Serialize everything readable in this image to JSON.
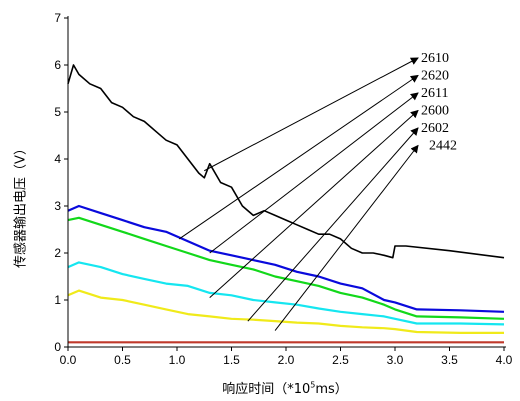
{
  "chart_data": {
    "type": "line",
    "xlabel_prefix": "响应时间（*10",
    "xlabel_sup": "5",
    "xlabel_suffix": "ms）",
    "ylabel": "传感器输出电压（V）",
    "xlim": [
      0,
      4.0
    ],
    "ylim": [
      0,
      7
    ],
    "xticks": [
      "0.0",
      "0.5",
      "1.0",
      "1.5",
      "2.0",
      "2.5",
      "3.0",
      "3.5",
      "4.0"
    ],
    "yticks": [
      "0",
      "1",
      "2",
      "3",
      "4",
      "5",
      "6",
      "7"
    ],
    "grid": false,
    "series": [
      {
        "name": "2610",
        "color": "#000000",
        "x": [
          0,
          0.05,
          0.1,
          0.2,
          0.3,
          0.4,
          0.5,
          0.6,
          0.7,
          0.8,
          0.9,
          1.0,
          1.1,
          1.2,
          1.25,
          1.3,
          1.4,
          1.5,
          1.6,
          1.7,
          1.8,
          1.9,
          2.0,
          2.1,
          2.2,
          2.3,
          2.4,
          2.5,
          2.6,
          2.7,
          2.8,
          2.9,
          2.98,
          3.0,
          3.1,
          3.5,
          4.0
        ],
        "y": [
          5.6,
          6.0,
          5.8,
          5.6,
          5.5,
          5.2,
          5.1,
          4.9,
          4.8,
          4.6,
          4.4,
          4.3,
          4.0,
          3.7,
          3.6,
          3.9,
          3.5,
          3.4,
          3.0,
          2.8,
          2.9,
          2.8,
          2.7,
          2.6,
          2.5,
          2.4,
          2.4,
          2.3,
          2.1,
          2.0,
          2.0,
          1.95,
          1.9,
          2.15,
          2.15,
          2.05,
          1.9
        ]
      },
      {
        "name": "2620",
        "color": "#0a0adc",
        "x": [
          0,
          0.1,
          0.3,
          0.5,
          0.7,
          0.9,
          1.1,
          1.3,
          1.5,
          1.7,
          1.9,
          2.1,
          2.3,
          2.5,
          2.7,
          2.9,
          3.0,
          3.2,
          3.6,
          4.0
        ],
        "y": [
          2.9,
          3.0,
          2.85,
          2.7,
          2.55,
          2.45,
          2.25,
          2.05,
          1.95,
          1.85,
          1.75,
          1.6,
          1.5,
          1.35,
          1.25,
          1.0,
          0.95,
          0.8,
          0.78,
          0.75
        ]
      },
      {
        "name": "2611",
        "color": "#12d81a",
        "x": [
          0,
          0.1,
          0.3,
          0.5,
          0.7,
          0.9,
          1.1,
          1.3,
          1.5,
          1.7,
          1.9,
          2.1,
          2.3,
          2.5,
          2.7,
          2.9,
          3.0,
          3.2,
          3.6,
          4.0
        ],
        "y": [
          2.7,
          2.75,
          2.6,
          2.45,
          2.3,
          2.15,
          2.0,
          1.85,
          1.75,
          1.65,
          1.5,
          1.4,
          1.3,
          1.15,
          1.05,
          0.9,
          0.8,
          0.65,
          0.63,
          0.6
        ]
      },
      {
        "name": "2600",
        "color": "#15e6f0",
        "x": [
          0,
          0.1,
          0.3,
          0.5,
          0.7,
          0.9,
          1.1,
          1.3,
          1.5,
          1.7,
          1.9,
          2.1,
          2.3,
          2.5,
          2.7,
          2.9,
          3.0,
          3.2,
          3.6,
          4.0
        ],
        "y": [
          1.7,
          1.8,
          1.7,
          1.55,
          1.45,
          1.35,
          1.3,
          1.15,
          1.1,
          1.0,
          0.95,
          0.9,
          0.82,
          0.75,
          0.7,
          0.65,
          0.6,
          0.5,
          0.5,
          0.48
        ]
      },
      {
        "name": "2602",
        "color": "#f0ea1a",
        "x": [
          0,
          0.1,
          0.3,
          0.5,
          0.7,
          0.9,
          1.1,
          1.3,
          1.5,
          1.7,
          1.9,
          2.1,
          2.3,
          2.5,
          2.7,
          2.9,
          3.0,
          3.2,
          3.6,
          4.0
        ],
        "y": [
          1.1,
          1.2,
          1.05,
          1.0,
          0.9,
          0.8,
          0.7,
          0.65,
          0.6,
          0.58,
          0.55,
          0.52,
          0.5,
          0.45,
          0.42,
          0.4,
          0.38,
          0.32,
          0.3,
          0.3
        ]
      },
      {
        "name": "2442",
        "color": "#c0392b",
        "x": [
          0,
          1.0,
          2.0,
          3.0,
          4.0
        ],
        "y": [
          0.1,
          0.1,
          0.1,
          0.1,
          0.1
        ]
      }
    ],
    "annotations": [
      {
        "label": "2610",
        "target_x": 1.25,
        "target_y": 3.75
      },
      {
        "label": "2620",
        "target_x": 1.02,
        "target_y": 2.3
      },
      {
        "label": "2611",
        "target_x": 1.3,
        "target_y": 2.0
      },
      {
        "label": "2600",
        "target_x": 1.3,
        "target_y": 1.05
      },
      {
        "label": "2602",
        "target_x": 1.65,
        "target_y": 0.55
      },
      {
        "label": "2442",
        "target_x": 1.9,
        "target_y": 0.35
      }
    ]
  }
}
